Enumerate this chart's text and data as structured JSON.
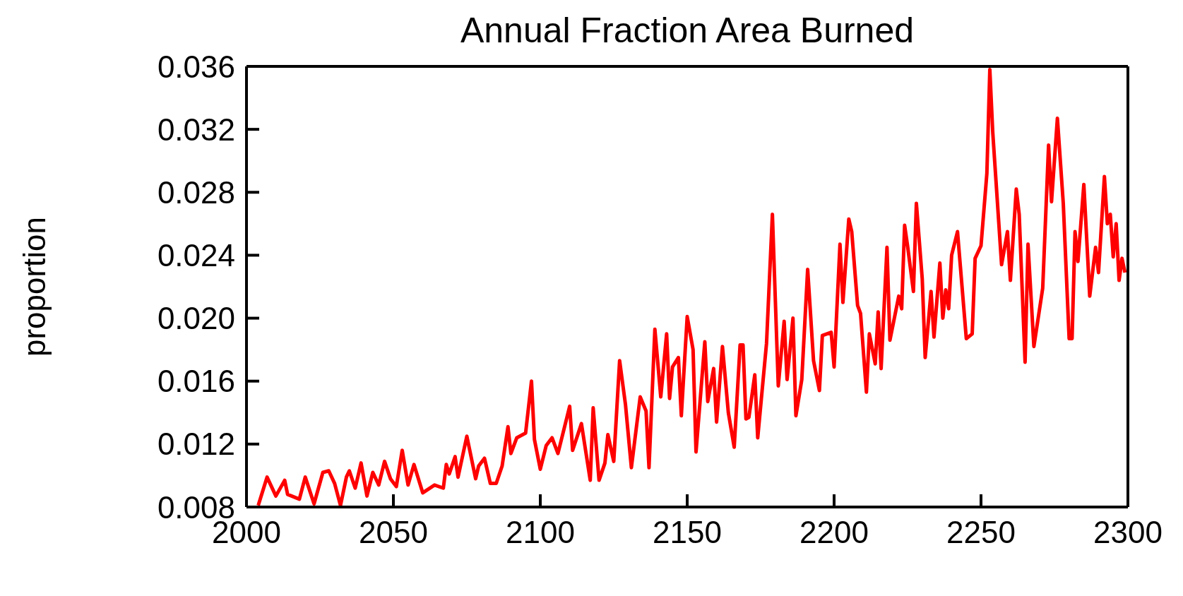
{
  "chart_data": {
    "type": "line",
    "title": "Annual Fraction Area Burned",
    "ylabel": "proportion",
    "xlim": [
      2000,
      2300
    ],
    "xticks": [
      2000,
      2050,
      2100,
      2150,
      2200,
      2250,
      2300
    ],
    "ylim": [
      0.008,
      0.036
    ],
    "yticks": [
      0.008,
      0.012,
      0.016,
      {
        "value": 0.02,
        "label": "0.020"
      },
      0.024,
      0.028,
      0.032,
      0.036
    ],
    "series": [
      {
        "color": "#ff0000",
        "x": [
          2004,
          2007,
          2010,
          2013,
          2014,
          2018,
          2020,
          2023,
          2026,
          2028,
          2030,
          2032,
          2034,
          2035,
          2037,
          2039,
          2041,
          2043,
          2045,
          2047,
          2049,
          2051,
          2053,
          2055,
          2057,
          2060,
          2064,
          2067,
          2068,
          2069,
          2071,
          2072,
          2075,
          2078,
          2079,
          2081,
          2083,
          2085,
          2087,
          2089,
          2090,
          2092,
          2095,
          2097,
          2098,
          2100,
          2102,
          2104,
          2106,
          2110,
          2111,
          2114,
          2117,
          2118,
          2120,
          2122,
          2123,
          2125,
          2127,
          2129,
          2131,
          2134,
          2136,
          2137,
          2139,
          2141,
          2143,
          2144,
          2145,
          2147,
          2148,
          2150,
          2152,
          2153,
          2156,
          2157,
          2159,
          2160,
          2162,
          2164,
          2166,
          2168,
          2169,
          2170,
          2171,
          2173,
          2174,
          2177,
          2179,
          2181,
          2183,
          2184,
          2186,
          2187,
          2189,
          2191,
          2193,
          2195,
          2196,
          2199,
          2200,
          2202,
          2203,
          2205,
          2206,
          2208,
          2209,
          2211,
          2212,
          2214,
          2215,
          2216,
          2218,
          2219,
          2222,
          2223,
          2224,
          2225,
          2227,
          2228,
          2230,
          2231,
          2233,
          2234,
          2236,
          2237,
          2238,
          2239,
          2240,
          2242,
          2245,
          2247,
          2248,
          2250,
          2252,
          2253,
          2254,
          2257,
          2259,
          2260,
          2262,
          2263,
          2265,
          2266,
          2268,
          2271,
          2273,
          2274,
          2276,
          2278,
          2280,
          2281,
          2282,
          2283,
          2285,
          2287,
          2289,
          2290,
          2292,
          2293,
          2294,
          2295,
          2296,
          2297,
          2298,
          2299
        ],
        "values": [
          0.0081,
          0.0099,
          0.0087,
          0.0097,
          0.0088,
          0.0085,
          0.0099,
          0.0082,
          0.0102,
          0.0103,
          0.0095,
          0.0081,
          0.0099,
          0.0103,
          0.0092,
          0.0108,
          0.0087,
          0.0102,
          0.0094,
          0.0109,
          0.0098,
          0.0093,
          0.0116,
          0.0094,
          0.0107,
          0.0089,
          0.0094,
          0.0092,
          0.0107,
          0.0101,
          0.0112,
          0.0099,
          0.0125,
          0.0098,
          0.0106,
          0.0111,
          0.0095,
          0.0095,
          0.0106,
          0.0131,
          0.0114,
          0.0124,
          0.0127,
          0.016,
          0.0123,
          0.0104,
          0.0119,
          0.0124,
          0.0114,
          0.0144,
          0.0116,
          0.0133,
          0.0097,
          0.0143,
          0.0097,
          0.0108,
          0.0126,
          0.0109,
          0.0173,
          0.0145,
          0.0105,
          0.015,
          0.0141,
          0.0105,
          0.0193,
          0.015,
          0.019,
          0.0149,
          0.0169,
          0.0175,
          0.0138,
          0.0201,
          0.018,
          0.0115,
          0.0185,
          0.0147,
          0.0168,
          0.0134,
          0.0182,
          0.014,
          0.0118,
          0.0183,
          0.0183,
          0.0136,
          0.0137,
          0.0164,
          0.0124,
          0.0184,
          0.0266,
          0.0157,
          0.0198,
          0.0161,
          0.02,
          0.0138,
          0.0161,
          0.0231,
          0.0173,
          0.0154,
          0.0189,
          0.0191,
          0.0169,
          0.0247,
          0.021,
          0.0263,
          0.0255,
          0.0208,
          0.0203,
          0.0153,
          0.019,
          0.0171,
          0.0204,
          0.0168,
          0.0245,
          0.0186,
          0.0214,
          0.0206,
          0.0259,
          0.0246,
          0.0217,
          0.0273,
          0.0225,
          0.0175,
          0.0217,
          0.0188,
          0.0235,
          0.02,
          0.0218,
          0.0206,
          0.024,
          0.0255,
          0.0187,
          0.019,
          0.0238,
          0.0246,
          0.0292,
          0.0358,
          0.0318,
          0.0234,
          0.0255,
          0.0224,
          0.0282,
          0.0266,
          0.0172,
          0.0247,
          0.0182,
          0.0219,
          0.031,
          0.0274,
          0.0327,
          0.0273,
          0.0187,
          0.0187,
          0.0255,
          0.0236,
          0.0285,
          0.0214,
          0.0245,
          0.0229,
          0.029,
          0.026,
          0.0266,
          0.0239,
          0.026,
          0.0224,
          0.0238,
          0.0229
        ]
      }
    ]
  }
}
